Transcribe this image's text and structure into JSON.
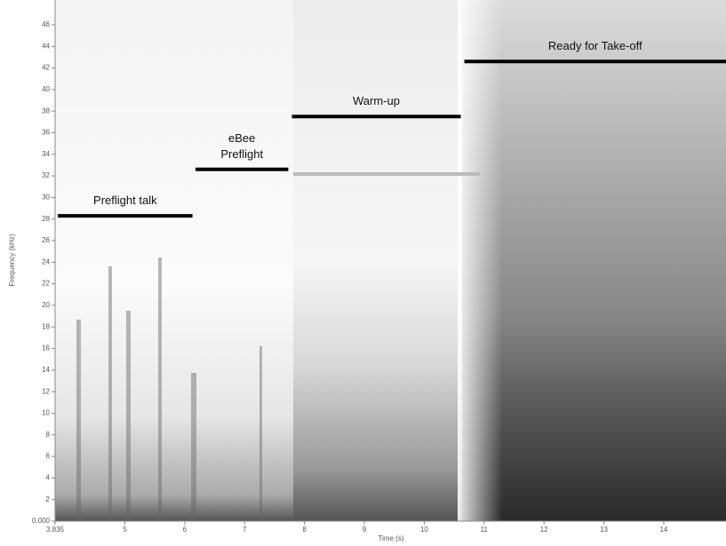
{
  "chart_data": {
    "type": "spectrogram",
    "x_label": "Time (s)",
    "y_label": "Frequency (kHz)",
    "xlim": [
      3.835,
      15.04
    ],
    "ylim": [
      0,
      48.3
    ],
    "xticks": [
      {
        "value": 3.835,
        "label": "3.835"
      },
      5,
      6,
      7,
      8,
      9,
      10,
      11,
      12,
      13,
      14
    ],
    "yticks": [
      {
        "value": 0,
        "label": "0.000"
      },
      2,
      4,
      6,
      8,
      10,
      12,
      14,
      16,
      18,
      20,
      22,
      24,
      26,
      28,
      30,
      32,
      34,
      36,
      38,
      40,
      42,
      44,
      46
    ],
    "grid": false,
    "phases": [
      {
        "label": "Preflight talk",
        "start": 3.88,
        "end": 6.13,
        "frequency": 28.3
      },
      {
        "label": "eBee\nPreflight",
        "start": 6.18,
        "end": 7.73,
        "frequency": 32.6
      },
      {
        "label": "Warm-up",
        "start": 7.79,
        "end": 10.61,
        "frequency": 37.5
      },
      {
        "label": "Ready for Take-off",
        "start": 10.67,
        "end": 15.04,
        "frequency": 42.6
      }
    ],
    "bar_color": "#000000"
  }
}
